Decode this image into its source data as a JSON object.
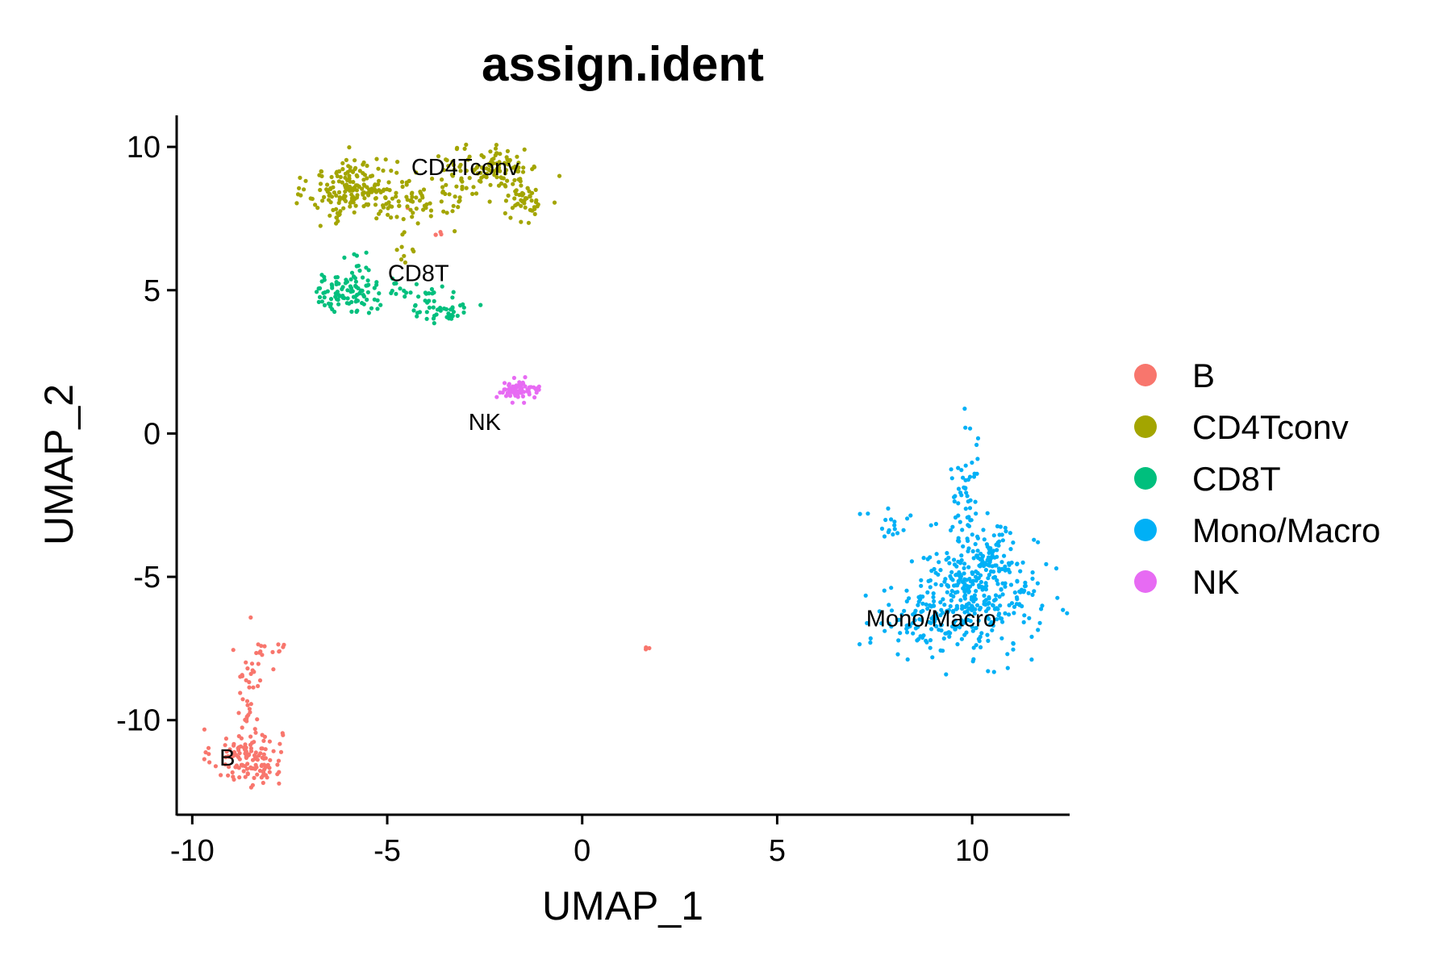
{
  "chart_data": {
    "type": "scatter",
    "title": "assign.ident",
    "xlabel": "UMAP_1",
    "ylabel": "UMAP_2",
    "xlim": [
      -10.4,
      12.5
    ],
    "ylim": [
      -13.3,
      11.1
    ],
    "x_ticks": [
      -10,
      -5,
      0,
      5,
      10
    ],
    "x_tick_labels": [
      "-10",
      "-5",
      "0",
      "5",
      "10"
    ],
    "y_ticks": [
      -10,
      -5,
      0,
      5,
      10
    ],
    "y_tick_labels": [
      "-10",
      "-5",
      "0",
      "5",
      "10"
    ],
    "grid": false,
    "legend_position": "right",
    "series": [
      {
        "name": "B",
        "color": "#F8766D",
        "cluster_label": "B",
        "label_pos": [
          -9.1,
          -11.3
        ],
        "regions": [
          {
            "center": [
              -8.6,
              -11.3
            ],
            "spread": [
              0.45,
              0.5
            ],
            "n": 130
          },
          {
            "center": [
              -8.5,
              -9.0
            ],
            "spread": [
              0.18,
              1.0
            ],
            "n": 35
          },
          {
            "center": [
              -8.1,
              -7.5
            ],
            "spread": [
              0.3,
              0.12
            ],
            "n": 14
          },
          {
            "center": [
              1.65,
              -7.45
            ],
            "spread": [
              0.05,
              0.05
            ],
            "n": 4
          },
          {
            "center": [
              -3.7,
              6.9
            ],
            "spread": [
              0.05,
              0.1
            ],
            "n": 4
          },
          {
            "center": [
              -4.5,
              7.9
            ],
            "spread": [
              0.03,
              0.03
            ],
            "n": 1
          }
        ]
      },
      {
        "name": "CD4Tconv",
        "color": "#A3A500",
        "cluster_label": "CD4Tconv",
        "label_pos": [
          -3.0,
          9.3
        ],
        "regions": [
          {
            "center": [
              -5.9,
              8.5
            ],
            "spread": [
              0.55,
              0.55
            ],
            "n": 170
          },
          {
            "center": [
              -4.5,
              8.3
            ],
            "spread": [
              0.5,
              0.45
            ],
            "n": 60
          },
          {
            "center": [
              -2.2,
              9.3
            ],
            "spread": [
              0.55,
              0.35
            ],
            "n": 90
          },
          {
            "center": [
              -1.5,
              8.1
            ],
            "spread": [
              0.3,
              0.35
            ],
            "n": 50
          },
          {
            "center": [
              -3.2,
              8.7
            ],
            "spread": [
              0.35,
              0.5
            ],
            "n": 40
          },
          {
            "center": [
              -4.6,
              6.6
            ],
            "spread": [
              0.15,
              0.5
            ],
            "n": 10
          }
        ]
      },
      {
        "name": "CD8T",
        "color": "#00BF7D",
        "cluster_label": "CD8T",
        "label_pos": [
          -4.2,
          5.6
        ],
        "regions": [
          {
            "center": [
              -6.1,
              4.9
            ],
            "spread": [
              0.4,
              0.35
            ],
            "n": 85
          },
          {
            "center": [
              -4.8,
              5.0
            ],
            "spread": [
              0.55,
              0.18
            ],
            "n": 30
          },
          {
            "center": [
              -3.6,
              4.4
            ],
            "spread": [
              0.35,
              0.3
            ],
            "n": 45
          },
          {
            "center": [
              -5.8,
              5.9
            ],
            "spread": [
              0.3,
              0.2
            ],
            "n": 8
          }
        ]
      },
      {
        "name": "Mono/Macro",
        "color": "#00B0F6",
        "cluster_label": "Mono/Macro",
        "label_pos": [
          8.95,
          -6.45
        ],
        "regions": [
          {
            "center": [
              10.1,
              -5.6
            ],
            "spread": [
              0.8,
              1.0
            ],
            "n": 360
          },
          {
            "center": [
              8.6,
              -6.5
            ],
            "spread": [
              0.6,
              0.5
            ],
            "n": 70
          },
          {
            "center": [
              9.85,
              -2.0
            ],
            "spread": [
              0.2,
              1.1
            ],
            "n": 50
          },
          {
            "center": [
              7.9,
              -3.2
            ],
            "spread": [
              0.4,
              0.25
            ],
            "n": 18
          },
          {
            "center": [
              10.5,
              -4.2
            ],
            "spread": [
              0.35,
              0.6
            ],
            "n": 40
          }
        ]
      },
      {
        "name": "NK",
        "color": "#E76BF3",
        "cluster_label": "NK",
        "label_pos": [
          -2.5,
          0.4
        ],
        "regions": [
          {
            "center": [
              -1.65,
              1.5
            ],
            "spread": [
              0.28,
              0.14
            ],
            "n": 70
          }
        ]
      }
    ]
  }
}
